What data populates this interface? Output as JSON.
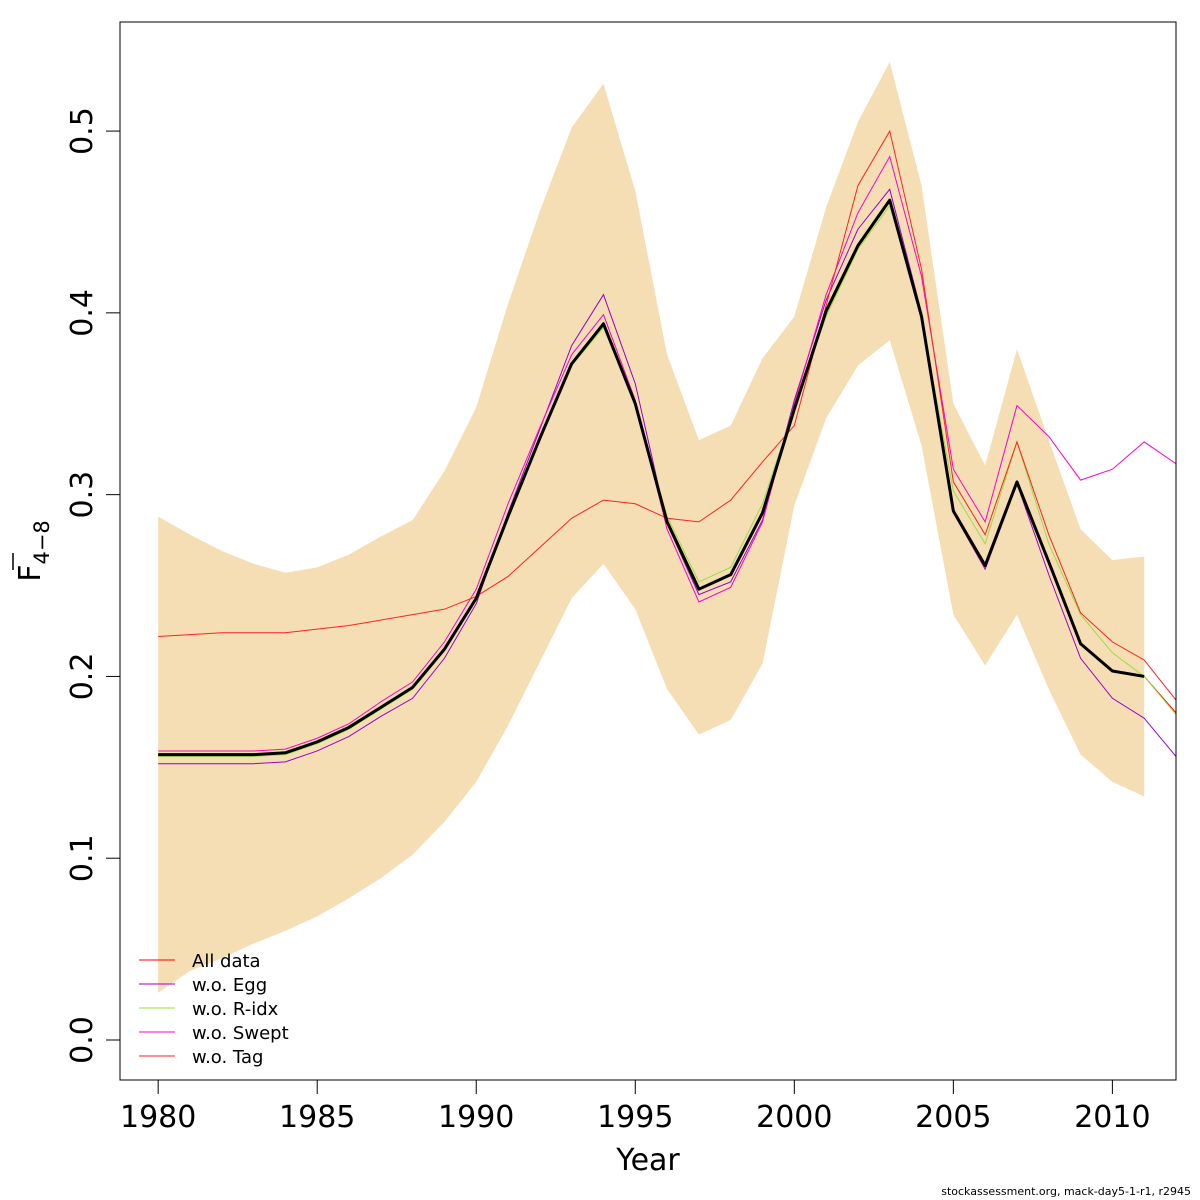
{
  "chart_data": {
    "type": "line",
    "xlabel": "Year",
    "ylabel": "F",
    "ylabel_sub": "4−8",
    "xlim": [
      1978.8,
      2012
    ],
    "ylim": [
      -0.022,
      0.56
    ],
    "x_ticks": [
      1980,
      1985,
      1990,
      1995,
      2000,
      2005,
      2010
    ],
    "y_ticks": [
      0.0,
      0.1,
      0.2,
      0.3,
      0.4,
      0.5
    ],
    "y_tick_labels": [
      "0.0",
      "0.1",
      "0.2",
      "0.3",
      "0.4",
      "0.5"
    ],
    "band": {
      "color": "#f5deb3",
      "x": [
        1980,
        1981,
        1982,
        1983,
        1984,
        1985,
        1986,
        1987,
        1988,
        1989,
        1990,
        1991,
        1992,
        1993,
        1994,
        1995,
        1996,
        1997,
        1998,
        1999,
        2000,
        2001,
        2002,
        2003,
        2004,
        2005,
        2006,
        2007,
        2008,
        2009,
        2010,
        2011
      ],
      "lower": [
        0.026,
        0.038,
        0.045,
        0.053,
        0.06,
        0.068,
        0.078,
        0.089,
        0.102,
        0.12,
        0.142,
        0.173,
        0.208,
        0.243,
        0.262,
        0.237,
        0.193,
        0.168,
        0.176,
        0.207,
        0.294,
        0.342,
        0.371,
        0.385,
        0.327,
        0.234,
        0.206,
        0.234,
        0.193,
        0.157,
        0.142,
        0.134
      ],
      "upper": [
        0.288,
        0.278,
        0.269,
        0.262,
        0.257,
        0.26,
        0.267,
        0.277,
        0.286,
        0.313,
        0.348,
        0.405,
        0.456,
        0.502,
        0.526,
        0.467,
        0.377,
        0.33,
        0.338,
        0.375,
        0.398,
        0.458,
        0.505,
        0.538,
        0.47,
        0.35,
        0.316,
        0.38,
        0.33,
        0.281,
        0.264,
        0.266
      ]
    },
    "main_series": {
      "color": "#000000",
      "x": [
        1980,
        1981,
        1982,
        1983,
        1984,
        1985,
        1986,
        1987,
        1988,
        1989,
        1990,
        1991,
        1992,
        1993,
        1994,
        1995,
        1996,
        1997,
        1998,
        1999,
        2000,
        2001,
        2002,
        2003,
        2004,
        2005,
        2006,
        2007,
        2008,
        2009,
        2010,
        2011
      ],
      "values": [
        0.157,
        0.157,
        0.157,
        0.157,
        0.158,
        0.164,
        0.172,
        0.183,
        0.194,
        0.215,
        0.243,
        0.288,
        0.331,
        0.372,
        0.394,
        0.35,
        0.285,
        0.248,
        0.256,
        0.29,
        0.347,
        0.401,
        0.437,
        0.462,
        0.398,
        0.291,
        0.261,
        0.307,
        0.263,
        0.218,
        0.203,
        0.2
      ]
    },
    "series": [
      {
        "name": "All data",
        "color": "#ff0000",
        "x": [
          1980,
          1981,
          1982,
          1983,
          1984,
          1985,
          1986,
          1987,
          1988,
          1989,
          1990,
          1991,
          1992,
          1993,
          1994,
          1995,
          1996,
          1997,
          1998,
          1999,
          2000,
          2001,
          2002,
          2003,
          2004,
          2005,
          2006,
          2007,
          2008,
          2009,
          2010,
          2011,
          2012
        ],
        "values": [
          0.157,
          0.157,
          0.157,
          0.157,
          0.158,
          0.164,
          0.172,
          0.183,
          0.194,
          0.215,
          0.243,
          0.288,
          0.331,
          0.372,
          0.394,
          0.35,
          0.285,
          0.248,
          0.256,
          0.29,
          0.347,
          0.401,
          0.437,
          0.462,
          0.398,
          0.291,
          0.261,
          0.307,
          0.263,
          0.218,
          0.203,
          0.2,
          0.18
        ]
      },
      {
        "name": "w.o. Egg",
        "color": "#9900cc",
        "x": [
          1980,
          1981,
          1982,
          1983,
          1984,
          1985,
          1986,
          1987,
          1988,
          1989,
          1990,
          1991,
          1992,
          1993,
          1994,
          1995,
          1996,
          1997,
          1998,
          1999,
          2000,
          2001,
          2002,
          2003,
          2004,
          2005,
          2006,
          2007,
          2008,
          2009,
          2010,
          2011,
          2012
        ],
        "values": [
          0.152,
          0.152,
          0.152,
          0.152,
          0.153,
          0.159,
          0.167,
          0.178,
          0.188,
          0.21,
          0.24,
          0.29,
          0.336,
          0.382,
          0.41,
          0.361,
          0.284,
          0.245,
          0.252,
          0.286,
          0.352,
          0.407,
          0.446,
          0.468,
          0.4,
          0.29,
          0.259,
          0.306,
          0.256,
          0.21,
          0.188,
          0.177,
          0.156
        ]
      },
      {
        "name": "w.o. R-idx",
        "color": "#99dd44",
        "x": [
          1980,
          1981,
          1982,
          1983,
          1984,
          1985,
          1986,
          1987,
          1988,
          1989,
          1990,
          1991,
          1992,
          1993,
          1994,
          1995,
          1996,
          1997,
          1998,
          1999,
          2000,
          2001,
          2002,
          2003,
          2004,
          2005,
          2006,
          2007,
          2008,
          2009,
          2010,
          2011,
          2012
        ],
        "values": [
          0.156,
          0.156,
          0.156,
          0.156,
          0.157,
          0.163,
          0.171,
          0.182,
          0.193,
          0.214,
          0.242,
          0.287,
          0.33,
          0.371,
          0.392,
          0.35,
          0.288,
          0.252,
          0.26,
          0.295,
          0.348,
          0.398,
          0.435,
          0.459,
          0.397,
          0.302,
          0.273,
          0.329,
          0.273,
          0.234,
          0.213,
          0.2,
          0.179
        ]
      },
      {
        "name": "w.o. Swept",
        "color": "#ff00cc",
        "x": [
          1980,
          1981,
          1982,
          1983,
          1984,
          1985,
          1986,
          1987,
          1988,
          1989,
          1990,
          1991,
          1992,
          1993,
          1994,
          1995,
          1996,
          1997,
          1998,
          1999,
          2000,
          2001,
          2002,
          2003,
          2004,
          2005,
          2006,
          2007,
          2008,
          2009,
          2010,
          2011,
          2012
        ],
        "values": [
          0.159,
          0.159,
          0.159,
          0.159,
          0.16,
          0.166,
          0.174,
          0.186,
          0.197,
          0.219,
          0.248,
          0.295,
          0.337,
          0.377,
          0.399,
          0.352,
          0.281,
          0.241,
          0.249,
          0.285,
          0.35,
          0.41,
          0.455,
          0.486,
          0.42,
          0.314,
          0.285,
          0.349,
          0.332,
          0.308,
          0.314,
          0.329,
          0.317
        ]
      },
      {
        "name": "w.o. Tag",
        "color": "#ff2222",
        "x": [
          1980,
          1981,
          1982,
          1983,
          1984,
          1985,
          1986,
          1987,
          1988,
          1989,
          1990,
          1991,
          1992,
          1993,
          1994,
          1995,
          1996,
          1997,
          1998,
          1999,
          2000,
          2001,
          2002,
          2003,
          2004,
          2005,
          2006,
          2007,
          2008,
          2009,
          2010,
          2011,
          2012
        ],
        "values": [
          0.222,
          0.223,
          0.224,
          0.224,
          0.224,
          0.226,
          0.228,
          0.231,
          0.234,
          0.237,
          0.244,
          0.255,
          0.271,
          0.287,
          0.297,
          0.295,
          0.287,
          0.285,
          0.297,
          0.318,
          0.338,
          0.404,
          0.47,
          0.5,
          0.424,
          0.307,
          0.278,
          0.329,
          0.278,
          0.235,
          0.219,
          0.209,
          0.187
        ]
      }
    ],
    "legend_position": "bottom-left",
    "grid": false
  },
  "credit": "stockassessment.org, mack-day5-1-r1, r2945"
}
